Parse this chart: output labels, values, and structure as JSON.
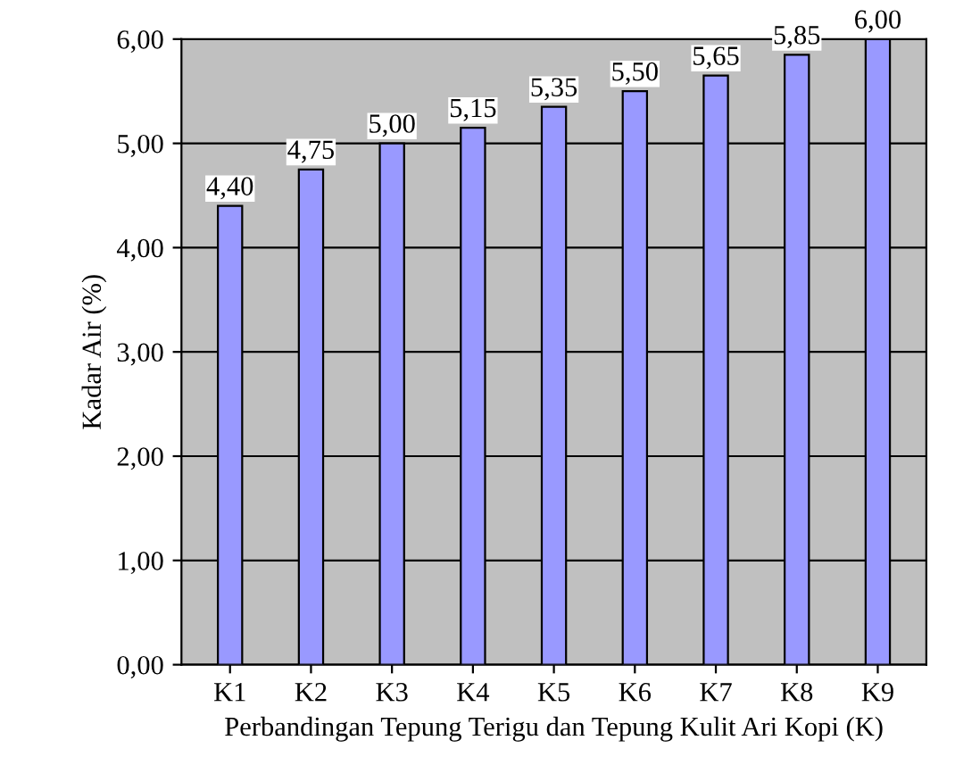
{
  "chart_data": {
    "type": "bar",
    "xlabel": "Perbandingan Tepung Terigu dan Tepung Kulit Ari Kopi (K)",
    "ylabel": "Kadar Air (%)",
    "categories": [
      "K1",
      "K2",
      "K3",
      "K4",
      "K5",
      "K6",
      "K7",
      "K8",
      "K9"
    ],
    "values": [
      4.4,
      4.75,
      5.0,
      5.15,
      5.35,
      5.5,
      5.65,
      5.85,
      6.0
    ],
    "value_labels": [
      "4,40",
      "4,75",
      "5,00",
      "5,15",
      "5,35",
      "5,50",
      "5,65",
      "5,85",
      "6,00"
    ],
    "color": "#9999ff",
    "ylim": [
      0,
      6
    ],
    "yticks": [
      {
        "value": 0,
        "label": "0,00"
      },
      {
        "value": 1,
        "label": "1,00"
      },
      {
        "value": 2,
        "label": "2,00"
      },
      {
        "value": 3,
        "label": "3,00"
      },
      {
        "value": 4,
        "label": "4,00"
      },
      {
        "value": 5,
        "label": "5,00"
      },
      {
        "value": 6,
        "label": "6,00"
      }
    ],
    "grid": "y",
    "legend": false
  }
}
